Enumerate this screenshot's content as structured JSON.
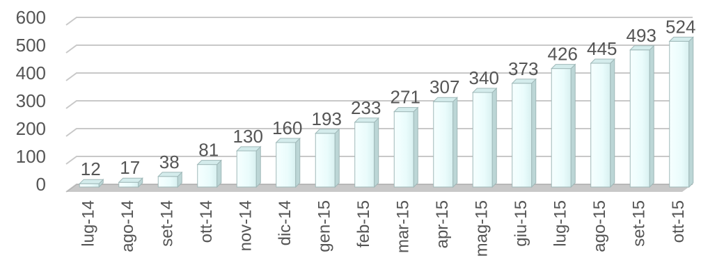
{
  "chart_data": {
    "type": "bar",
    "title": "",
    "xlabel": "",
    "ylabel": "",
    "ylim": [
      0,
      600
    ],
    "yticks": [
      0,
      100,
      200,
      300,
      400,
      500,
      600
    ],
    "grid": true,
    "categories": [
      "lug-14",
      "ago-14",
      "set-14",
      "ott-14",
      "nov-14",
      "dic-14",
      "gen-15",
      "feb-15",
      "mar-15",
      "apr-15",
      "mag-15",
      "giu-15",
      "lug-15",
      "ago-15",
      "set-15",
      "ott-15"
    ],
    "values": [
      12,
      17,
      38,
      81,
      130,
      160,
      193,
      233,
      271,
      307,
      340,
      373,
      426,
      445,
      493,
      524
    ],
    "colors": {
      "bar_front": "#eafcfc",
      "bar_side": "#bcd6d6",
      "bar_top": "#d4ecec",
      "text": "#555555",
      "grid": "#c8c8c8"
    }
  }
}
